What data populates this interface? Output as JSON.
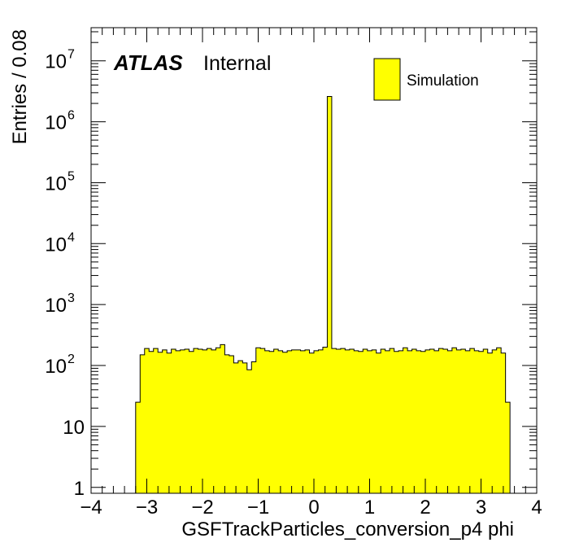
{
  "chart_data": {
    "type": "histogram",
    "xlabel": "GSFTrackParticles_conversion_p4 phi",
    "ylabel": "Entries / 0.08",
    "xlim": [
      -4,
      4
    ],
    "ylim": [
      0.8,
      35000000
    ],
    "yscale": "log",
    "x_ticks": [
      "−4",
      "−3",
      "−2",
      "−1",
      "0",
      "1",
      "2",
      "3",
      "4"
    ],
    "y_ticks": [
      {
        "base": "1",
        "exp": ""
      },
      {
        "base": "10",
        "exp": ""
      },
      {
        "base": "10",
        "exp": "2"
      },
      {
        "base": "10",
        "exp": "3"
      },
      {
        "base": "10",
        "exp": "4"
      },
      {
        "base": "10",
        "exp": "5"
      },
      {
        "base": "10",
        "exp": "6"
      },
      {
        "base": "10",
        "exp": "7"
      }
    ],
    "label_atlas": "ATLAS",
    "label_status": "Internal",
    "legend": [
      {
        "name": "Simulation",
        "color": "#ffff00"
      }
    ],
    "fill_color": "#ffff00",
    "bin_width": 0.08,
    "bin_start": -3.2,
    "bin_values": [
      25,
      150,
      190,
      170,
      190,
      165,
      180,
      160,
      185,
      175,
      180,
      185,
      170,
      190,
      185,
      180,
      190,
      180,
      195,
      220,
      150,
      145,
      110,
      120,
      110,
      85,
      115,
      195,
      190,
      175,
      170,
      185,
      175,
      165,
      175,
      180,
      180,
      175,
      180,
      160,
      175,
      180,
      200,
      2600000,
      190,
      185,
      190,
      180,
      185,
      175,
      170,
      185,
      175,
      180,
      160,
      185,
      175,
      190,
      170,
      175,
      195,
      175,
      185,
      175,
      170,
      180,
      185,
      175,
      190,
      185,
      175,
      195,
      180,
      185,
      175,
      190,
      175,
      170,
      185,
      160,
      180,
      195,
      160
    ],
    "tail_bin_value": 25
  }
}
